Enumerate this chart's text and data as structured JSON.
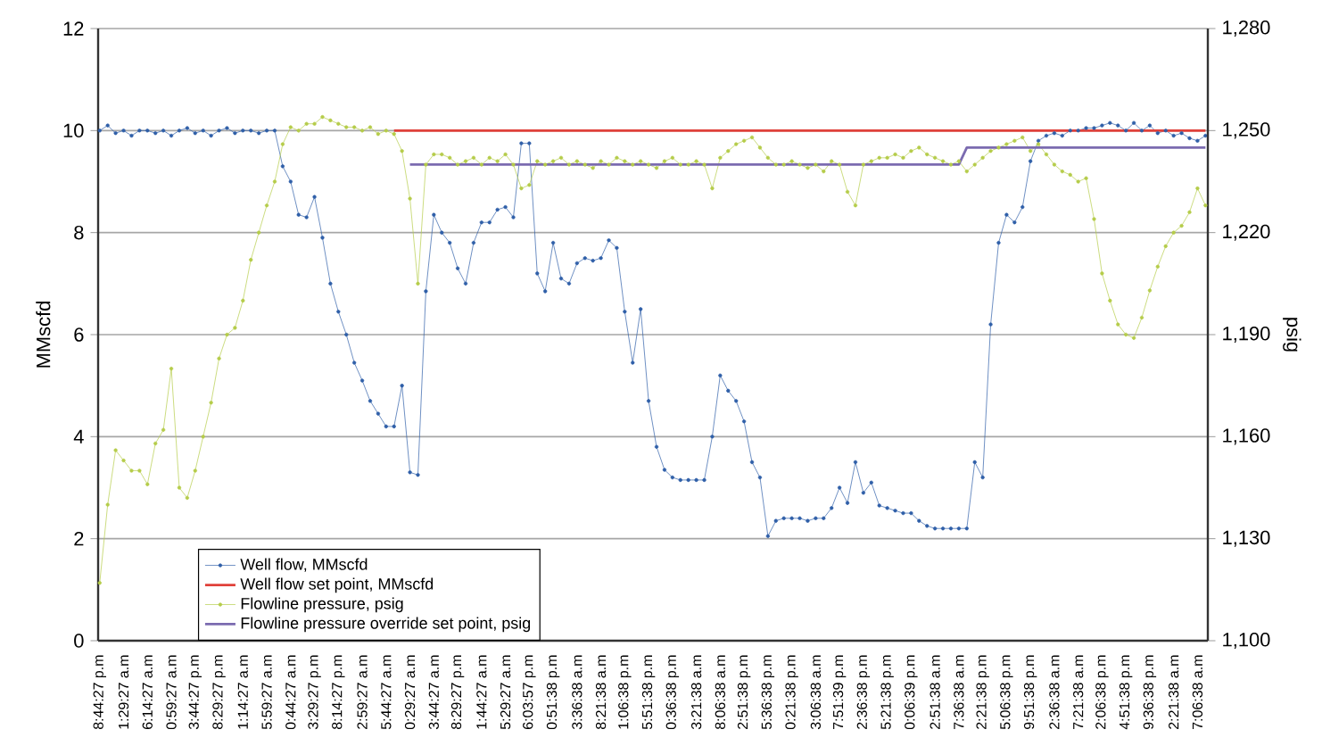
{
  "chart_data": {
    "type": "line",
    "ylabel": "MMscfd",
    "y2label": "psig",
    "categories": [
      "8:44:27 p.m",
      null,
      null,
      "1:29:27 a.m",
      null,
      null,
      "6:14:27 a.m",
      null,
      null,
      "0:59:27 a.m",
      null,
      null,
      "3:44:27 p.m",
      null,
      null,
      "8:29:27 p.m",
      null,
      null,
      "1:14:27 a.m",
      null,
      null,
      "5:59:27 a.m",
      null,
      null,
      "0:44:27 a.m",
      null,
      null,
      "3:29:27 p.m",
      null,
      null,
      "8:14:27 p.m",
      null,
      null,
      "2:59:27 a.m",
      null,
      null,
      "5:44:27 a.m",
      null,
      null,
      "0:29:27 a.m",
      null,
      null,
      "3:44:27 a.m",
      null,
      null,
      "8:29:27 p.m",
      null,
      null,
      "1:44:27 a.m",
      null,
      null,
      "5:29:27 a.m",
      null,
      null,
      "6:03:57 p.m",
      null,
      null,
      "0:51:38 p.m",
      null,
      null,
      "3:36:38 a.m",
      null,
      null,
      "8:21:38 a.m",
      null,
      null,
      "1:06:38 p.m",
      null,
      null,
      "5:51:38 p.m",
      null,
      null,
      "0:36:38 p.m",
      null,
      null,
      "3:21:38 a.m",
      null,
      null,
      "8:06:38 a.m",
      null,
      null,
      "2:51:38 p.m",
      null,
      null,
      "5:36:38 p.m",
      null,
      null,
      "0:21:38 p.m",
      null,
      null,
      "3:06:38 a.m",
      null,
      null,
      "7:51:39 p.m",
      null,
      null,
      "2:36:38 p.m",
      null,
      null,
      "5:21:38 p.m",
      null,
      null,
      "0:06:39 p.m",
      null,
      null,
      "2:51:38 a.m",
      null,
      null,
      "7:36:38 a.m",
      null,
      null,
      "2:21:38 p.m",
      null,
      null,
      "5:06:38 p.m",
      null,
      null,
      "9:51:38 p.m",
      null,
      null,
      "2:36:38 a.m",
      null,
      null,
      "7:21:38 a.m",
      null,
      null,
      "2:06:38 p.m",
      null,
      null,
      "4:51:38 p.m",
      null,
      null,
      "9:36:38 p.m",
      null,
      null,
      "2:21:38 a.m",
      null,
      null,
      "7:06:38 a.m",
      null
    ],
    "series": [
      {
        "name": "Well flow, MMscfd",
        "color": "#2f5fa8",
        "marker": "circle",
        "values": [
          10.0,
          10.1,
          9.95,
          10.0,
          9.9,
          10.0,
          10.0,
          9.95,
          10.0,
          9.9,
          10.0,
          10.05,
          9.95,
          10.0,
          9.9,
          10.0,
          10.05,
          9.95,
          10.0,
          10.0,
          9.95,
          10.0,
          10.0,
          9.3,
          9.0,
          8.35,
          8.3,
          8.7,
          7.9,
          7.0,
          6.45,
          6.0,
          5.45,
          5.1,
          4.7,
          4.45,
          4.2,
          4.2,
          5.0,
          3.3,
          3.25,
          6.85,
          8.35,
          8.0,
          7.8,
          7.3,
          7.0,
          7.8,
          8.2,
          8.2,
          8.45,
          8.5,
          8.3,
          9.75,
          9.75,
          7.2,
          6.85,
          7.8,
          7.1,
          7.0,
          7.4,
          7.5,
          7.45,
          7.5,
          7.85,
          7.7,
          6.45,
          5.45,
          6.5,
          4.7,
          3.8,
          3.35,
          3.2,
          3.15,
          3.15,
          3.15,
          3.15,
          4.0,
          5.2,
          4.9,
          4.7,
          4.3,
          3.5,
          3.2,
          2.05,
          2.35,
          2.4,
          2.4,
          2.4,
          2.35,
          2.4,
          2.4,
          2.6,
          3.0,
          2.7,
          3.5,
          2.9,
          3.1,
          2.65,
          2.6,
          2.55,
          2.5,
          2.5,
          2.35,
          2.25,
          2.2,
          2.2,
          2.2,
          2.2,
          2.2,
          3.5,
          3.2,
          6.2,
          7.8,
          8.35,
          8.2,
          8.5,
          9.4,
          9.8,
          9.9,
          9.95,
          9.9,
          10.0,
          10.0,
          10.05,
          10.05,
          10.1,
          10.15,
          10.1,
          10.0,
          10.15,
          10.0,
          10.1,
          9.95,
          10.0,
          9.9,
          9.95,
          9.85,
          9.8,
          9.9
        ]
      },
      {
        "name": "Well flow set point, MMscfd",
        "color": "#e0413a",
        "marker": "none",
        "values": [
          null,
          null,
          null,
          null,
          null,
          null,
          null,
          null,
          null,
          null,
          null,
          null,
          null,
          null,
          null,
          null,
          null,
          null,
          null,
          null,
          null,
          null,
          null,
          null,
          null,
          null,
          null,
          null,
          null,
          null,
          null,
          null,
          null,
          null,
          null,
          null,
          null,
          10,
          10,
          10,
          10,
          10,
          10,
          10,
          10,
          10,
          10,
          10,
          10,
          10,
          10,
          10,
          10,
          10,
          10,
          10,
          10,
          10,
          10,
          10,
          10,
          10,
          10,
          10,
          10,
          10,
          10,
          10,
          10,
          10,
          10,
          10,
          10,
          10,
          10,
          10,
          10,
          10,
          10,
          10,
          10,
          10,
          10,
          10,
          10,
          10,
          10,
          10,
          10,
          10,
          10,
          10,
          10,
          10,
          10,
          10,
          10,
          10,
          10,
          10,
          10,
          10,
          10,
          10,
          10,
          10,
          10,
          10,
          10,
          10,
          10,
          10,
          10,
          10,
          10,
          10,
          10,
          10,
          10,
          10,
          10,
          10,
          10,
          10,
          10,
          10,
          10,
          10,
          10,
          10,
          10,
          10,
          10,
          10,
          10,
          10,
          10,
          10,
          10,
          10
        ]
      },
      {
        "name": "Flowline pressure, psig",
        "color": "#b5cc4a",
        "marker": "circle",
        "axis": "y2",
        "values": [
          1117,
          1140,
          1156,
          1153,
          1150,
          1150,
          1146,
          1158,
          1162,
          1180,
          1145,
          1142,
          1150,
          1160,
          1170,
          1183,
          1190,
          1192,
          1200,
          1212,
          1220,
          1228,
          1235,
          1246,
          1251,
          1250,
          1252,
          1252,
          1254,
          1253,
          1252,
          1251,
          1251,
          1250,
          1251,
          1249,
          1250,
          1249,
          1244,
          1230,
          1205,
          1240,
          1243,
          1243,
          1242,
          1240,
          1241,
          1242,
          1240,
          1242,
          1241,
          1243,
          1240,
          1233,
          1234,
          1241,
          1240,
          1241,
          1242,
          1240,
          1241,
          1240,
          1239,
          1241,
          1240,
          1242,
          1241,
          1240,
          1241,
          1240,
          1239,
          1241,
          1242,
          1240,
          1240,
          1241,
          1240,
          1233,
          1242,
          1244,
          1246,
          1247,
          1248,
          1245,
          1242,
          1240,
          1240,
          1241,
          1240,
          1239,
          1240,
          1238,
          1241,
          1240,
          1232,
          1228,
          1240,
          1241,
          1242,
          1242,
          1243,
          1242,
          1244,
          1245,
          1243,
          1242,
          1241,
          1240,
          1241,
          1238,
          1240,
          1242,
          1244,
          1245,
          1246,
          1247,
          1248,
          1244,
          1246,
          1243,
          1240,
          1238,
          1237,
          1235,
          1236,
          1224,
          1208,
          1200,
          1193,
          1190,
          1189,
          1195,
          1203,
          1210,
          1216,
          1220,
          1222,
          1226,
          1233,
          1228
        ]
      },
      {
        "name": "Flowline pressure override set point, psig",
        "color": "#7b6bb0",
        "marker": "none",
        "axis": "y2",
        "values": [
          null,
          null,
          null,
          null,
          null,
          null,
          null,
          null,
          null,
          null,
          null,
          null,
          null,
          null,
          null,
          null,
          null,
          null,
          null,
          null,
          null,
          null,
          null,
          null,
          null,
          null,
          null,
          null,
          null,
          null,
          null,
          null,
          null,
          null,
          null,
          null,
          null,
          null,
          null,
          1240,
          1240,
          1240,
          1240,
          1240,
          1240,
          1240,
          1240,
          1240,
          1240,
          1240,
          1240,
          1240,
          1240,
          1240,
          1240,
          1240,
          1240,
          1240,
          1240,
          1240,
          1240,
          1240,
          1240,
          1240,
          1240,
          1240,
          1240,
          1240,
          1240,
          1240,
          1240,
          1240,
          1240,
          1240,
          1240,
          1240,
          1240,
          1240,
          1240,
          1240,
          1240,
          1240,
          1240,
          1240,
          1240,
          1240,
          1240,
          1240,
          1240,
          1240,
          1240,
          1240,
          1240,
          1240,
          1240,
          1240,
          1240,
          1240,
          1240,
          1240,
          1240,
          1240,
          1240,
          1240,
          1240,
          1240,
          1240,
          1240,
          1240,
          1245,
          1245,
          1245,
          1245,
          1245,
          1245,
          1245,
          1245,
          1245,
          1245,
          1245,
          1245,
          1245,
          1245,
          1245,
          1245,
          1245,
          1245,
          1245,
          1245,
          1245,
          1245,
          1245,
          1245,
          1245,
          1245,
          1245,
          1245,
          1245,
          1245,
          1245
        ]
      }
    ],
    "ylim": [
      0,
      12
    ],
    "yticks": [
      0,
      2,
      4,
      6,
      8,
      10,
      12
    ],
    "y2lim": [
      1100,
      1280
    ],
    "y2ticks": [
      {
        "value": 1100,
        "label": "1,100"
      },
      {
        "value": 1130,
        "label": "1,130"
      },
      {
        "value": 1160,
        "label": "1,160"
      },
      {
        "value": 1190,
        "label": "1,190"
      },
      {
        "value": 1220,
        "label": "1,220"
      },
      {
        "value": 1250,
        "label": "1,250"
      },
      {
        "value": 1280,
        "label": "1,280"
      }
    ],
    "grid": "y",
    "legend": "bottom left"
  }
}
